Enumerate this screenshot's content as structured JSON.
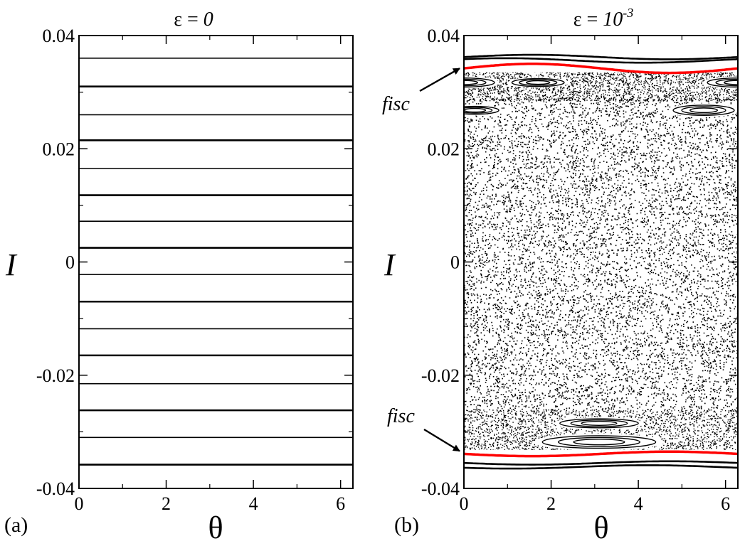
{
  "chart_data": [
    {
      "type": "line",
      "panel_label": "(a)",
      "title_prefix": "ε = ",
      "title_value": "0",
      "title_exp": "",
      "xlabel": "θ",
      "ylabel": "I",
      "xlim": [
        0,
        6.2832
      ],
      "ylim": [
        -0.04,
        0.04
      ],
      "xticks": [
        0,
        2,
        4,
        6
      ],
      "xtick_labels": [
        "0",
        "2",
        "4",
        "6"
      ],
      "yticks": [
        -0.04,
        -0.02,
        0,
        0.02,
        0.04
      ],
      "ytick_labels": [
        "-0.04",
        "-0.02",
        "0",
        "0.02",
        "0.04"
      ],
      "grid": false,
      "horizontal_lines": [
        0.036,
        0.031,
        0.026,
        0.0215,
        0.0165,
        0.0118,
        0.0072,
        0.0025,
        -0.0022,
        -0.007,
        -0.0118,
        -0.0165,
        -0.0215,
        -0.0262,
        -0.031,
        -0.0358
      ],
      "line_color": "#000000"
    },
    {
      "type": "scatter",
      "panel_label": "(b)",
      "title_prefix": "ε = ",
      "title_value": "10",
      "title_exp": "-3",
      "xlabel": "θ",
      "ylabel": "I",
      "xlim": [
        0,
        6.2832
      ],
      "ylim": [
        -0.04,
        0.04
      ],
      "xticks": [
        0,
        2,
        4,
        6
      ],
      "xtick_labels": [
        "0",
        "2",
        "4",
        "6"
      ],
      "yticks": [
        -0.04,
        -0.02,
        0,
        0.02,
        0.04
      ],
      "ytick_labels": [
        "-0.04",
        "-0.02",
        "0",
        "0.02",
        "0.04"
      ],
      "grid": false,
      "chaotic_sea_range": [
        -0.026,
        0.029
      ],
      "islands": [
        {
          "theta": 0.0,
          "I": 0.0317,
          "semi_theta": 0.7,
          "semi_I": 0.0008
        },
        {
          "theta": 6.2832,
          "I": 0.0317,
          "semi_theta": 0.7,
          "semi_I": 0.0008
        },
        {
          "theta": 1.7,
          "I": 0.0317,
          "semi_theta": 0.6,
          "semi_I": 0.0007
        },
        {
          "theta": 0.25,
          "I": 0.0268,
          "semi_theta": 0.55,
          "semi_I": 0.0007
        },
        {
          "theta": 5.5,
          "I": 0.0268,
          "semi_theta": 0.7,
          "semi_I": 0.0009
        },
        {
          "theta": 3.1,
          "I": -0.0285,
          "semi_theta": 0.9,
          "semi_I": 0.0008
        },
        {
          "theta": 3.1,
          "I": -0.0318,
          "semi_theta": 1.3,
          "semi_I": 0.0011
        }
      ],
      "upper_boundary_curves": [
        0.0362,
        0.0356
      ],
      "lower_boundary_curves": [
        -0.0355,
        -0.0362
      ],
      "fisc_upper": {
        "mean": 0.0342,
        "amplitude": 0.0008,
        "phase": 0.0,
        "color": "#ff0000"
      },
      "fisc_lower": {
        "mean": -0.0339,
        "amplitude": 0.0004,
        "phase": 3.14159,
        "color": "#ff0000"
      },
      "annotations": [
        {
          "text": "fisc",
          "target_theta": 0.0,
          "target_I": 0.0342
        },
        {
          "text": "fisc",
          "target_theta": 0.0,
          "target_I": -0.0334
        }
      ],
      "marker_color": "#000000"
    }
  ]
}
